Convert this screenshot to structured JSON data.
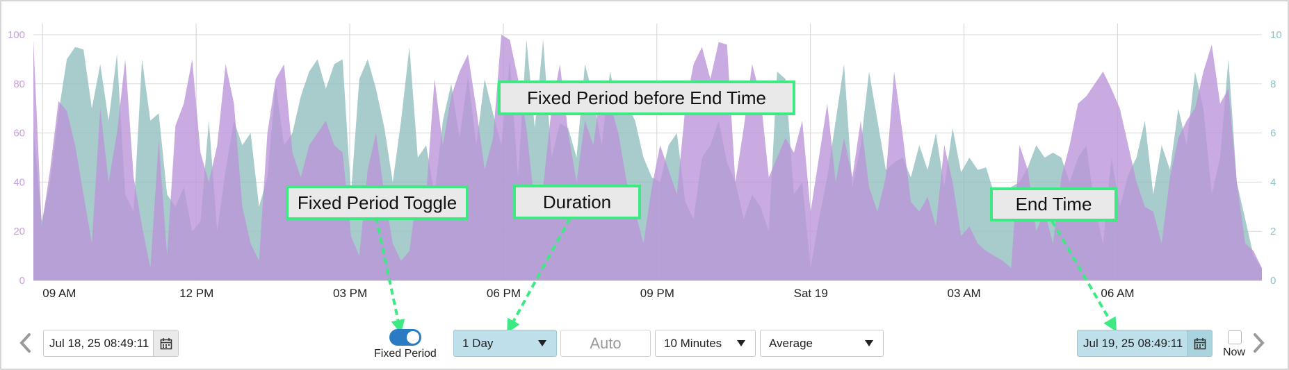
{
  "colors": {
    "series_a": "#bb93d8",
    "series_b": "#8fbdbe",
    "overlap": "#9b88c8",
    "left_axis_text": "#c8a0dd",
    "right_axis_text": "#8fc3c9",
    "callout_border": "#3ee882",
    "arrow": "#3ee882",
    "toggle_on": "#2a7bc4",
    "highlight_input": "#bfe0ea"
  },
  "chart_data": {
    "type": "area",
    "y_left": {
      "ticks": [
        "0",
        "20",
        "40",
        "60",
        "80",
        "100"
      ],
      "lim": [
        0,
        100
      ]
    },
    "y_right": {
      "ticks": [
        "0",
        "2",
        "4",
        "6",
        "8",
        "10"
      ],
      "lim": [
        0,
        10
      ]
    },
    "x_ticks": [
      "09 AM",
      "12 PM",
      "03 PM",
      "06 PM",
      "09 PM",
      "Sat 19",
      "03 AM",
      "06 AM"
    ],
    "x_range_hours": [
      8.82,
      32.82
    ],
    "grid": true,
    "series": [
      {
        "axis": "left",
        "values": [
          98,
          22,
          45,
          73,
          69,
          55,
          35,
          15,
          70,
          40,
          60,
          90,
          42,
          22,
          5,
          57,
          10,
          63,
          72,
          90,
          52,
          40,
          55,
          88,
          72,
          30,
          15,
          8,
          60,
          82,
          88,
          52,
          42,
          55,
          60,
          65,
          55,
          52,
          18,
          10,
          45,
          60,
          35,
          15,
          8,
          12,
          38,
          35,
          82,
          55,
          75,
          85,
          92,
          70,
          45,
          58,
          100,
          98,
          82,
          62,
          30,
          38,
          70,
          88,
          60,
          40,
          65,
          55,
          80,
          72,
          60,
          40,
          28,
          15,
          38,
          55,
          45,
          35,
          70,
          88,
          95,
          82,
          97,
          96,
          40,
          62,
          88,
          75,
          42,
          50,
          58,
          52,
          65,
          28,
          50,
          72,
          40,
          58,
          42,
          65,
          38,
          28,
          42,
          85,
          60,
          32,
          28,
          34,
          22,
          55,
          40,
          18,
          22,
          15,
          12,
          10,
          8,
          5,
          55,
          45,
          20,
          28,
          15,
          42,
          55,
          72,
          75,
          80,
          85,
          78,
          70,
          55,
          40,
          30,
          28,
          15,
          42,
          58,
          65,
          70,
          85,
          96,
          72,
          78,
          40,
          15,
          12,
          5
        ],
        "sampled_every_minutes": 10,
        "display_step_points": 1
      },
      {
        "axis": "right",
        "values": [
          6.2,
          2.4,
          4.0,
          6.8,
          9.0,
          9.5,
          9.4,
          7.0,
          8.8,
          6.5,
          9.2,
          3.5,
          2.8,
          9.0,
          6.5,
          6.8,
          3.5,
          3.0,
          3.8,
          2.0,
          2.4,
          6.5,
          2.0,
          4.5,
          6.5,
          5.5,
          6.0,
          3.0,
          4.2,
          8.0,
          5.5,
          6.0,
          7.5,
          8.5,
          9.0,
          7.8,
          8.8,
          9.0,
          3.5,
          8.2,
          9.0,
          7.8,
          6.2,
          4.0,
          6.5,
          9.5,
          5.0,
          5.5,
          3.5,
          6.5,
          8.0,
          5.8,
          8.3,
          5.5,
          8.2,
          6.8,
          5.5,
          9.0,
          4.2,
          9.8,
          6.2,
          9.8,
          5.0,
          6.4,
          6.2,
          5.0,
          8.8,
          7.5,
          5.5,
          8.5,
          7.0,
          7.2,
          6.5,
          5.0,
          4.2,
          4.0,
          5.5,
          6.0,
          3.2,
          2.5,
          5.0,
          5.5,
          6.5,
          4.8,
          4.0,
          2.5,
          3.5,
          3.0,
          2.0,
          8.5,
          8.2,
          3.5,
          4.0,
          0.5,
          2.5,
          4.2,
          6.5,
          8.8,
          3.8,
          5.5,
          8.5,
          6.5,
          4.5,
          4.8,
          5.0,
          4.2,
          5.5,
          4.5,
          6.0,
          3.8,
          6.2,
          4.4,
          5.0,
          4.5,
          4.6,
          3.5,
          2.5,
          3.8,
          4.0,
          4.6,
          5.5,
          5.0,
          5.2,
          5.0,
          4.0,
          5.0,
          5.5,
          3.0,
          1.5,
          5.0,
          3.0,
          4.3,
          5.0,
          6.5,
          3.5,
          5.5,
          4.5,
          7.0,
          5.5,
          8.5,
          7.0,
          3.5,
          5.0,
          9.0,
          4.0,
          2.5,
          1.0,
          0.5
        ],
        "sampled_every_minutes": 10,
        "display_step_points": 1
      }
    ]
  },
  "callouts": {
    "fixed_period_before_end": "Fixed Period before End Time",
    "fixed_period_toggle": "Fixed Period Toggle",
    "duration": "Duration",
    "end_time": "End Time"
  },
  "controls": {
    "start_date": "Jul 18, 25 08:49:11",
    "fixed_period_label": "Fixed Period",
    "fixed_period_on": true,
    "duration": "1 Day",
    "auto_label": "Auto",
    "interval": "10 Minutes",
    "aggregate": "Average",
    "end_date": "Jul 19, 25 08:49:11",
    "now_label": "Now",
    "now_checked": false
  },
  "icons": {
    "prev": "chevron-left-icon",
    "next": "chevron-right-icon",
    "calendar": "calendar-icon"
  }
}
